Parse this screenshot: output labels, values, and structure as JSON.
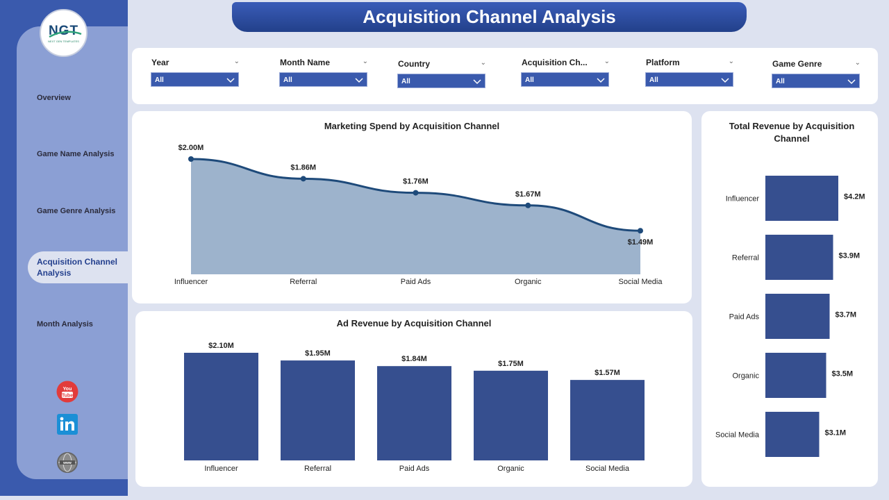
{
  "colors": {
    "brand_dark": "#2c4a9a",
    "bar": "#364f8f",
    "area_fill": "#9db3cc",
    "line": "#1e4a7a",
    "sidebar": "#8b9fd4",
    "background": "#dde2f0"
  },
  "logo": {
    "text": "NGT",
    "subtitle": "NEXT GEN TEMPLATES"
  },
  "sidebar": {
    "items": [
      {
        "label": "Overview"
      },
      {
        "label": "Game Name Analysis"
      },
      {
        "label": "Game Genre Analysis"
      },
      {
        "label": "Acquisition Channel Analysis",
        "active": true
      },
      {
        "label": "Month Analysis"
      }
    ],
    "social": [
      {
        "icon": "youtube-icon"
      },
      {
        "icon": "linkedin-icon"
      },
      {
        "icon": "website-icon"
      }
    ]
  },
  "header": {
    "title": "Acquisition Channel Analysis"
  },
  "filters": [
    {
      "label": "Year",
      "value": "All"
    },
    {
      "label": "Month Name",
      "value": "All"
    },
    {
      "label": "Country",
      "value": "All"
    },
    {
      "label": "Acquisition Ch...",
      "value": "All"
    },
    {
      "label": "Platform",
      "value": "All"
    },
    {
      "label": "Game Genre",
      "value": "All"
    }
  ],
  "chart_data": [
    {
      "type": "area",
      "title": "Marketing Spend by Acquisition Channel",
      "categories": [
        "Influencer",
        "Referral",
        "Paid Ads",
        "Organic",
        "Social Media"
      ],
      "values": [
        2.0,
        1.86,
        1.76,
        1.67,
        1.49
      ],
      "data_labels": [
        "$2.00M",
        "$1.86M",
        "$1.76M",
        "$1.67M",
        "$1.49M"
      ],
      "unit": "$M",
      "ylim": [
        1.18,
        2.0
      ]
    },
    {
      "type": "bar",
      "title": "Ad Revenue by Acquisition Channel",
      "categories": [
        "Influencer",
        "Referral",
        "Paid Ads",
        "Organic",
        "Social Media"
      ],
      "values": [
        2.1,
        1.95,
        1.84,
        1.75,
        1.57
      ],
      "data_labels": [
        "$2.10M",
        "$1.95M",
        "$1.84M",
        "$1.75M",
        "$1.57M"
      ],
      "unit": "$M",
      "ylim": [
        0,
        2.1
      ]
    },
    {
      "type": "bar",
      "orientation": "horizontal",
      "title": "Total Revenue by Acquisition Channel",
      "categories": [
        "Influencer",
        "Referral",
        "Paid Ads",
        "Organic",
        "Social Media"
      ],
      "values": [
        4.2,
        3.9,
        3.7,
        3.5,
        3.1
      ],
      "data_labels": [
        "$4.2M",
        "$3.9M",
        "$3.7M",
        "$3.5M",
        "$3.1M"
      ],
      "unit": "$M",
      "ylim": [
        0,
        4.2
      ]
    }
  ]
}
